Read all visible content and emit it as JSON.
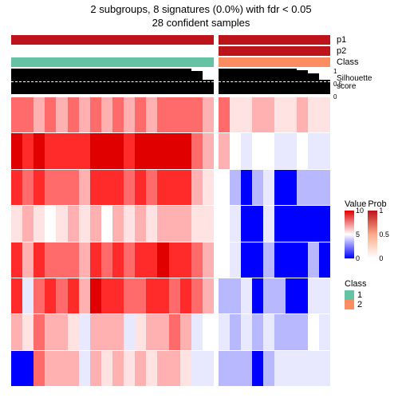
{
  "title_line1": "2 subgroups, 8 signatures (0.0%) with fdr < 0.05",
  "title_line2": "28 confident samples",
  "layout": {
    "block1_cols": 18,
    "block2_cols": 10,
    "heat_rows": 8
  },
  "colors": {
    "p_scale": [
      "#ffffff",
      "#fee3d7",
      "#fcab8c",
      "#fc7050",
      "#ea362a",
      "#bc141a"
    ],
    "value_scale": [
      "#0000ff",
      "#6a6aff",
      "#b8b8ff",
      "#e8e8ff",
      "#ffffff",
      "#ffe3e3",
      "#ffb0b0",
      "#ff6a6a",
      "#ff2a2a",
      "#e00000"
    ],
    "class1": "#66c2a5",
    "class2": "#fc8d62",
    "black": "#000000",
    "white": "#ffffff"
  },
  "anno": {
    "p1": {
      "b1": [
        5,
        5,
        5,
        5,
        5,
        5,
        5,
        5,
        5,
        5,
        5,
        5,
        5,
        5,
        5,
        5,
        5,
        5
      ],
      "b2": [
        5,
        5,
        5,
        5,
        5,
        5,
        5,
        5,
        5,
        5
      ]
    },
    "p2": {
      "b1": [
        0,
        0,
        0,
        0,
        0,
        0,
        0,
        0,
        0,
        0,
        0,
        0,
        0,
        0,
        0,
        0,
        0,
        0
      ],
      "b2": [
        5,
        5,
        5,
        5,
        5,
        5,
        5,
        5,
        5,
        5
      ]
    },
    "class": {
      "b1": [
        1,
        1,
        1,
        1,
        1,
        1,
        1,
        1,
        1,
        1,
        1,
        1,
        1,
        1,
        1,
        1,
        1,
        1
      ],
      "b2": [
        2,
        2,
        2,
        2,
        2,
        2,
        2,
        2,
        2,
        2
      ]
    }
  },
  "silhouette": {
    "dash_at": 0.5,
    "b1": [
      1,
      1,
      1,
      1,
      1,
      1,
      1,
      1,
      1,
      1,
      1,
      1,
      1,
      1,
      1,
      1,
      0.9,
      0.55
    ],
    "b2": [
      1,
      1,
      1,
      1,
      1,
      1,
      1,
      0.93,
      0.8,
      0.55
    ],
    "ticks": [
      {
        "v": 1,
        "label": "1",
        "pos": 0
      },
      {
        "v": 0.5,
        "label": "0.5",
        "pos": 16
      },
      {
        "v": 0,
        "label": "0",
        "pos": 32
      }
    ]
  },
  "heatmap": {
    "b1": [
      [
        7,
        7,
        6,
        7,
        6,
        7,
        6,
        7,
        6,
        7,
        6,
        7,
        6,
        7,
        7,
        7,
        7,
        6
      ],
      [
        9,
        8,
        9,
        8,
        8,
        8,
        8,
        9,
        9,
        9,
        8,
        9,
        9,
        9,
        9,
        9,
        7,
        6
      ],
      [
        8,
        7,
        8,
        7,
        7,
        7,
        6,
        8,
        8,
        8,
        7,
        8,
        7,
        8,
        8,
        8,
        6,
        5
      ],
      [
        5,
        6,
        5,
        4,
        5,
        6,
        5,
        6,
        4,
        6,
        5,
        6,
        5,
        6,
        6,
        6,
        5,
        5
      ],
      [
        8,
        6,
        8,
        7,
        7,
        7,
        6,
        8,
        7,
        8,
        7,
        8,
        8,
        9,
        8,
        8,
        7,
        6
      ],
      [
        8,
        3,
        7,
        8,
        7,
        8,
        6,
        9,
        8,
        8,
        7,
        7,
        8,
        8,
        7,
        8,
        7,
        6
      ],
      [
        6,
        5,
        7,
        6,
        6,
        5,
        3,
        6,
        6,
        6,
        3,
        5,
        6,
        6,
        7,
        6,
        3,
        4
      ],
      [
        0,
        0,
        7,
        6,
        6,
        6,
        3,
        6,
        5,
        6,
        5,
        6,
        5,
        6,
        6,
        5,
        3,
        3
      ]
    ],
    "b2": [
      [
        7,
        5,
        5,
        6,
        6,
        5,
        5,
        6,
        5,
        5
      ],
      [
        6,
        4,
        3,
        4,
        4,
        3,
        3,
        4,
        3,
        3
      ],
      [
        4,
        2,
        0,
        2,
        3,
        0,
        0,
        2,
        2,
        2
      ],
      [
        4,
        3,
        0,
        0,
        3,
        0,
        0,
        0,
        0,
        0
      ],
      [
        4,
        3,
        0,
        0,
        2,
        0,
        0,
        0,
        2,
        0
      ],
      [
        2,
        2,
        3,
        0,
        2,
        2,
        0,
        0,
        3,
        3
      ],
      [
        3,
        2,
        3,
        2,
        3,
        2,
        2,
        2,
        4,
        3
      ],
      [
        2,
        2,
        2,
        0,
        2,
        3,
        3,
        3,
        3,
        3
      ]
    ]
  },
  "labels": {
    "p1": "p1",
    "p2": "p2",
    "class": "Class",
    "silhouette": "Silhouette\nscore"
  },
  "legends": {
    "value": {
      "title": "Value",
      "ticks": [
        {
          "v": "10",
          "p": 0
        },
        {
          "v": "5",
          "p": 30
        },
        {
          "v": "0",
          "p": 60
        }
      ]
    },
    "prob": {
      "title": "Prob",
      "ticks": [
        {
          "v": "1",
          "p": 0
        },
        {
          "v": "0.5",
          "p": 30
        },
        {
          "v": "0",
          "p": 60
        }
      ]
    },
    "class": {
      "title": "Class",
      "items": [
        {
          "label": "1",
          "key": "class1"
        },
        {
          "label": "2",
          "key": "class2"
        }
      ]
    }
  }
}
